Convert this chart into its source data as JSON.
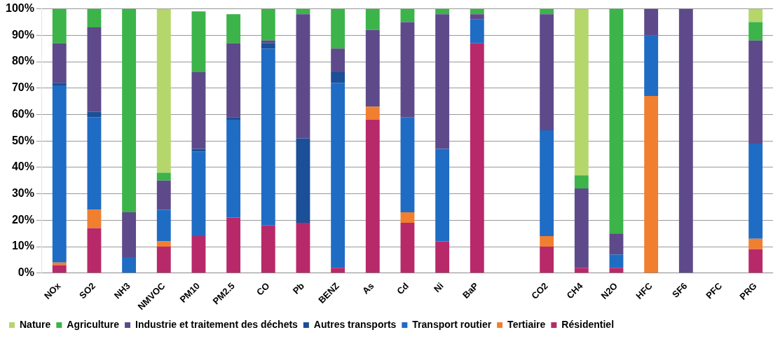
{
  "chart_data": {
    "type": "bar",
    "stacked": true,
    "categories": [
      "NOx",
      "SO2",
      "NH3",
      "NMVOC",
      "PM10",
      "PM2.5",
      "CO",
      "Pb",
      "BENZ",
      "As",
      "Cd",
      "Ni",
      "BaP",
      null,
      "CO2",
      "CH4",
      "N2O",
      "HFC",
      "SF6",
      "PFC",
      "PRG"
    ],
    "series": [
      {
        "name": "Résidentiel",
        "color": "#b8296a",
        "values": [
          3,
          17,
          0,
          10,
          14,
          21,
          18,
          19,
          2,
          58,
          19,
          12,
          87,
          null,
          10,
          2,
          2,
          0,
          0,
          0,
          9
        ]
      },
      {
        "name": "Tertiaire",
        "color": "#f07f2f",
        "values": [
          1,
          7,
          0,
          2,
          0,
          0,
          0,
          0,
          0,
          5,
          4,
          0,
          0,
          null,
          4,
          0,
          0,
          67,
          0,
          0,
          4
        ]
      },
      {
        "name": "Transport routier",
        "color": "#1f6cc4",
        "values": [
          67,
          35,
          6,
          12,
          32,
          37,
          67,
          0,
          70,
          0,
          36,
          35,
          9,
          null,
          40,
          0,
          5,
          23,
          0,
          0,
          36
        ]
      },
      {
        "name": "Autres transports",
        "color": "#1b4f97",
        "values": [
          1,
          2,
          0,
          0,
          1,
          1,
          2,
          32,
          4,
          0,
          0,
          0,
          0,
          null,
          0,
          0,
          0,
          0,
          0,
          0,
          0
        ]
      },
      {
        "name": "Industrie et traitement des déchets",
        "color": "#5e4a8a",
        "values": [
          15,
          32,
          17,
          11,
          29,
          28,
          1,
          47,
          9,
          29,
          36,
          51,
          2,
          null,
          44,
          30,
          8,
          10,
          100,
          0,
          39
        ]
      },
      {
        "name": "Agriculture",
        "color": "#3cb44a",
        "values": [
          13,
          7,
          77,
          3,
          23,
          11,
          12,
          2,
          15,
          8,
          5,
          2,
          2,
          null,
          2,
          5,
          85,
          0,
          0,
          0,
          7
        ]
      },
      {
        "name": "Nature",
        "color": "#b5d66b",
        "values": [
          0,
          0,
          0,
          62,
          0,
          0,
          0,
          0,
          0,
          0,
          0,
          0,
          0,
          null,
          0,
          63,
          0,
          0,
          0,
          0,
          5
        ]
      }
    ],
    "ylim": [
      0,
      100
    ],
    "yticks": [
      {
        "value": 0,
        "label": "0%"
      },
      {
        "value": 10,
        "label": "10%"
      },
      {
        "value": 20,
        "label": "20%"
      },
      {
        "value": 30,
        "label": "30%"
      },
      {
        "value": 40,
        "label": "40%"
      },
      {
        "value": 50,
        "label": "50%"
      },
      {
        "value": 60,
        "label": "60%"
      },
      {
        "value": 70,
        "label": "70%"
      },
      {
        "value": 80,
        "label": "80%"
      },
      {
        "value": 90,
        "label": "90%"
      },
      {
        "value": 100,
        "label": "100%"
      }
    ],
    "grid": "y",
    "legend": "bottom"
  }
}
